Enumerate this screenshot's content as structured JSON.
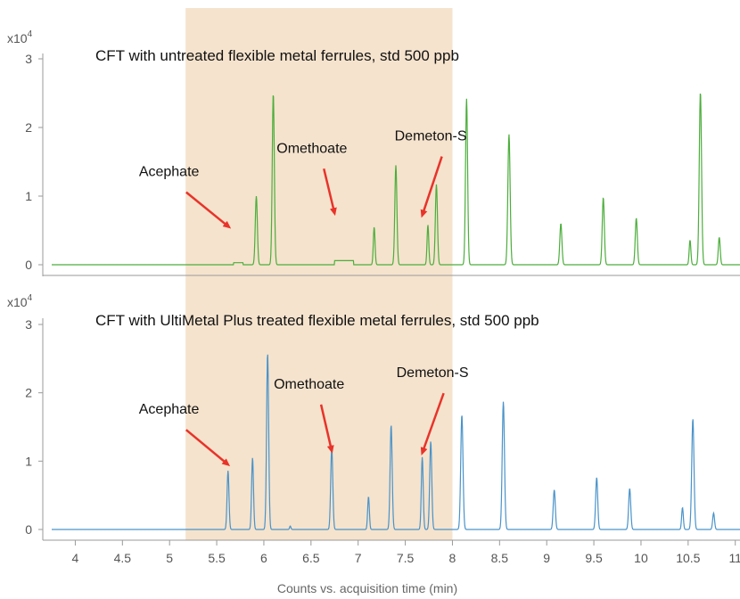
{
  "chart_data": {
    "type": "line",
    "xlabel": "Counts vs. acquisition time (min)",
    "x_ticks": [
      "4",
      "4.5",
      "5",
      "5.5",
      "6",
      "6.5",
      "7",
      "7.5",
      "8",
      "8.5",
      "9",
      "9.5",
      "10",
      "10.5",
      "11"
    ],
    "xlim": [
      3.75,
      11.05
    ],
    "highlight_region": {
      "x_start": 5.17,
      "x_end": 8.0,
      "color": "#f5e3cd"
    },
    "panels": [
      {
        "title": "CFT with untreated flexible metal ferrules, std 500 ppb",
        "exponent_base": "x10",
        "exponent_power": "4",
        "y_ticks": [
          "0",
          "1",
          "2",
          "3"
        ],
        "ylim": [
          0,
          3
        ],
        "series_color": "#4cae3c",
        "peaks": [
          {
            "x": 5.92,
            "h": 1.0,
            "w": 0.011
          },
          {
            "x": 6.1,
            "h": 2.5,
            "w": 0.011
          },
          {
            "x": 7.17,
            "h": 0.55,
            "w": 0.009
          },
          {
            "x": 7.4,
            "h": 1.45,
            "w": 0.011
          },
          {
            "x": 7.74,
            "h": 0.58,
            "w": 0.009
          },
          {
            "x": 7.83,
            "h": 1.17,
            "w": 0.011
          },
          {
            "x": 8.15,
            "h": 2.42,
            "w": 0.011
          },
          {
            "x": 8.6,
            "h": 1.9,
            "w": 0.012
          },
          {
            "x": 9.15,
            "h": 0.6,
            "w": 0.011
          },
          {
            "x": 9.6,
            "h": 0.98,
            "w": 0.011
          },
          {
            "x": 9.95,
            "h": 0.68,
            "w": 0.011
          },
          {
            "x": 10.52,
            "h": 0.36,
            "w": 0.009
          },
          {
            "x": 10.63,
            "h": 2.52,
            "w": 0.012
          },
          {
            "x": 10.83,
            "h": 0.4,
            "w": 0.01
          }
        ],
        "humps": [
          {
            "x_start": 5.68,
            "x_end": 5.78,
            "h": 0.03
          },
          {
            "x_start": 6.75,
            "x_end": 6.95,
            "h": 0.06
          }
        ],
        "annotations": [
          {
            "label": "Acephate",
            "tip_x": 5.63,
            "tip_y": 0.55
          },
          {
            "label": "Omethoate",
            "tip_x": 6.75,
            "tip_y": 0.75
          },
          {
            "label": "Demeton-S",
            "tip_x": 7.68,
            "tip_y": 0.72
          }
        ]
      },
      {
        "title": "CFT with UltiMetal Plus treated flexible metal ferrules, std 500 ppb",
        "exponent_base": "x10",
        "exponent_power": "4",
        "y_ticks": [
          "0",
          "1",
          "2",
          "3"
        ],
        "ylim": [
          0,
          3
        ],
        "series_color": "#4a93c9",
        "peaks": [
          {
            "x": 5.62,
            "h": 0.86,
            "w": 0.01
          },
          {
            "x": 5.88,
            "h": 1.05,
            "w": 0.01
          },
          {
            "x": 6.04,
            "h": 2.58,
            "w": 0.011
          },
          {
            "x": 6.28,
            "h": 0.05,
            "w": 0.007
          },
          {
            "x": 6.72,
            "h": 1.2,
            "w": 0.011
          },
          {
            "x": 7.11,
            "h": 0.48,
            "w": 0.009
          },
          {
            "x": 7.35,
            "h": 1.53,
            "w": 0.011
          },
          {
            "x": 7.68,
            "h": 1.06,
            "w": 0.01
          },
          {
            "x": 7.77,
            "h": 1.29,
            "w": 0.011
          },
          {
            "x": 8.1,
            "h": 1.68,
            "w": 0.012
          },
          {
            "x": 8.54,
            "h": 1.87,
            "w": 0.012
          },
          {
            "x": 9.08,
            "h": 0.58,
            "w": 0.011
          },
          {
            "x": 9.53,
            "h": 0.76,
            "w": 0.011
          },
          {
            "x": 9.88,
            "h": 0.6,
            "w": 0.011
          },
          {
            "x": 10.44,
            "h": 0.32,
            "w": 0.009
          },
          {
            "x": 10.55,
            "h": 1.62,
            "w": 0.012
          },
          {
            "x": 10.77,
            "h": 0.24,
            "w": 0.01
          }
        ],
        "humps": [],
        "annotations": [
          {
            "label": "Acephate",
            "tip_x": 5.62,
            "tip_y": 0.95
          },
          {
            "label": "Omethoate",
            "tip_x": 6.72,
            "tip_y": 1.15
          },
          {
            "label": "Demeton-S",
            "tip_x": 7.68,
            "tip_y": 1.12
          }
        ]
      }
    ]
  }
}
